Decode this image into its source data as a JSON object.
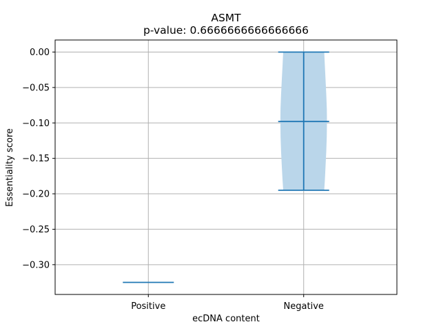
{
  "chart_data": {
    "type": "violin",
    "title": "ASMT",
    "subtitle": "p-value: 0.6666666666666666",
    "xlabel": "ecDNA content",
    "ylabel": "Essentiality score",
    "categories": [
      "Positive",
      "Negative"
    ],
    "ylim": [
      -0.342,
      0.017
    ],
    "yticks": [
      0.0,
      -0.05,
      -0.1,
      -0.15,
      -0.2,
      -0.25,
      -0.3
    ],
    "ytick_labels": [
      "0.00",
      "−0.05",
      "−0.10",
      "−0.15",
      "−0.20",
      "−0.25",
      "−0.30"
    ],
    "grid": true,
    "violins": [
      {
        "category": "Positive",
        "min": -0.325,
        "max": -0.325,
        "median": -0.325,
        "has_body": false
      },
      {
        "category": "Negative",
        "min": -0.195,
        "max": 0.0,
        "median": -0.098,
        "has_body": true,
        "body_shape": [
          [
            -0.195,
            0.44
          ],
          [
            -0.18,
            0.455
          ],
          [
            -0.16,
            0.47
          ],
          [
            -0.14,
            0.485
          ],
          [
            -0.12,
            0.495
          ],
          [
            -0.098,
            0.5
          ],
          [
            -0.08,
            0.497
          ],
          [
            -0.06,
            0.485
          ],
          [
            -0.04,
            0.47
          ],
          [
            -0.02,
            0.455
          ],
          [
            0.0,
            0.44
          ]
        ]
      }
    ],
    "colors": {
      "body_fill": "#bad6ea",
      "line": "#1f77b4",
      "grid": "#b0b0b0"
    }
  }
}
